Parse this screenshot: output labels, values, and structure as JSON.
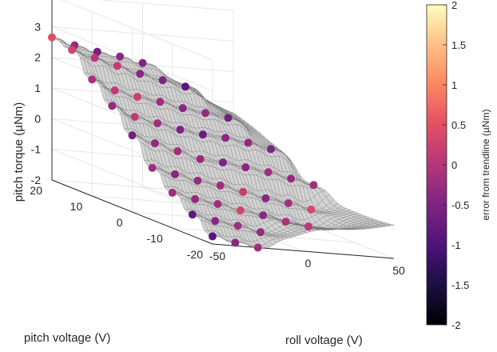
{
  "chart_data": {
    "type": "surface",
    "xlabel": "roll voltage (V)",
    "ylabel": "pitch voltage (V)",
    "zlabel": "pitch torque (µNm)",
    "colorbar_label": "error from trendline (µNm)",
    "xlim": [
      -50,
      50
    ],
    "ylim": [
      -20,
      20
    ],
    "zlim": [
      -2,
      4
    ],
    "clim": [
      -2,
      2
    ],
    "colormap": "magma",
    "x_ticks": [
      "-50",
      "0",
      "50"
    ],
    "y_ticks": [
      "-20",
      "-10",
      "0",
      "10",
      "20"
    ],
    "z_ticks": [
      "-2",
      "-1",
      "0",
      "1",
      "2",
      "3",
      "4"
    ],
    "cb_ticks": [
      "2",
      "1.5",
      "1",
      "0.5",
      "0",
      "-0.5",
      "-1",
      "-1.5",
      "-2"
    ],
    "grid": true,
    "surface_color": "#d2d2d2",
    "mesh_color": "#6e6e6e",
    "roll_voltages": [
      -50,
      -37.5,
      -25,
      -12.5,
      0,
      12.5,
      25,
      37.5,
      50
    ],
    "pitch_voltages": [
      20,
      15,
      10,
      5,
      0,
      -5,
      -10,
      -15,
      -20
    ],
    "points": [
      {
        "x": -50,
        "y": 20,
        "z": 2.65,
        "e": 0.45
      },
      {
        "x": -37.5,
        "y": 20,
        "z": 2.45,
        "e": -0.3
      },
      {
        "x": -25,
        "y": 20,
        "z": 2.3,
        "e": -0.6
      },
      {
        "x": -12.5,
        "y": 20,
        "z": 2.2,
        "e": -0.4
      },
      {
        "x": 0,
        "y": 20,
        "z": 2.05,
        "e": -0.5
      },
      {
        "x": -50,
        "y": 15,
        "z": 2.5,
        "e": 0.3
      },
      {
        "x": -37.5,
        "y": 15,
        "z": 2.3,
        "e": 0.05
      },
      {
        "x": -25,
        "y": 15,
        "z": 2.1,
        "e": 0.15
      },
      {
        "x": -12.5,
        "y": 15,
        "z": 1.9,
        "e": -0.4
      },
      {
        "x": 0,
        "y": 15,
        "z": 1.75,
        "e": -0.5
      },
      {
        "x": 12.5,
        "y": 15,
        "z": 1.6,
        "e": -0.9
      },
      {
        "x": -50,
        "y": 10,
        "z": 1.8,
        "e": -0.1
      },
      {
        "x": -37.5,
        "y": 10,
        "z": 1.5,
        "e": 0.1
      },
      {
        "x": -25,
        "y": 10,
        "z": 1.35,
        "e": 0.2
      },
      {
        "x": -12.5,
        "y": 10,
        "z": 1.25,
        "e": -0.2
      },
      {
        "x": 0,
        "y": 10,
        "z": 1.1,
        "e": -0.4
      },
      {
        "x": 12.5,
        "y": 10,
        "z": 1.0,
        "e": -0.3
      },
      {
        "x": 25,
        "y": 10,
        "z": 0.9,
        "e": -0.6
      },
      {
        "x": -50,
        "y": 5,
        "z": 1.2,
        "e": -0.3
      },
      {
        "x": -37.5,
        "y": 5,
        "z": 0.9,
        "e": 0.1
      },
      {
        "x": -25,
        "y": 5,
        "z": 0.75,
        "e": -0.2
      },
      {
        "x": -12.5,
        "y": 5,
        "z": 0.6,
        "e": -0.5
      },
      {
        "x": 0,
        "y": 5,
        "z": 0.5,
        "e": -0.7
      },
      {
        "x": 12.5,
        "y": 5,
        "z": 0.45,
        "e": -0.4
      },
      {
        "x": 25,
        "y": 5,
        "z": 0.35,
        "e": -0.3
      },
      {
        "x": 37.5,
        "y": 5,
        "z": 0.2,
        "e": -0.5
      },
      {
        "x": -50,
        "y": 0,
        "z": 0.5,
        "e": -0.6
      },
      {
        "x": -37.5,
        "y": 0,
        "z": 0.3,
        "e": -0.3
      },
      {
        "x": -25,
        "y": 0,
        "z": 0.1,
        "e": -0.2
      },
      {
        "x": -12.5,
        "y": 0,
        "z": -0.1,
        "e": -0.3
      },
      {
        "x": 0,
        "y": 0,
        "z": -0.15,
        "e": -0.5
      },
      {
        "x": 12.5,
        "y": 0,
        "z": -0.25,
        "e": -0.4
      },
      {
        "x": 25,
        "y": 0,
        "z": -0.35,
        "e": -0.2
      },
      {
        "x": 37.5,
        "y": 0,
        "z": -0.5,
        "e": -0.3
      },
      {
        "x": 50,
        "y": 0,
        "z": -0.65,
        "e": -0.2
      },
      {
        "x": -50,
        "y": -5,
        "z": -0.3,
        "e": -0.2
      },
      {
        "x": -37.5,
        "y": -5,
        "z": -0.45,
        "e": -0.4
      },
      {
        "x": -25,
        "y": -5,
        "z": -0.6,
        "e": -0.3
      },
      {
        "x": -12.5,
        "y": -5,
        "z": -0.7,
        "e": -0.2
      },
      {
        "x": 0,
        "y": -5,
        "z": -0.85,
        "e": 0.15
      },
      {
        "x": 12.5,
        "y": -5,
        "z": -1.0,
        "e": -0.4
      },
      {
        "x": 25,
        "y": -5,
        "z": -1.1,
        "e": -0.2
      },
      {
        "x": 37.5,
        "y": -5,
        "z": -1.25,
        "e": 0.35
      },
      {
        "x": -50,
        "y": -10,
        "z": -0.85,
        "e": -0.2
      },
      {
        "x": -37.5,
        "y": -10,
        "z": -1.0,
        "e": -0.3
      },
      {
        "x": -25,
        "y": -10,
        "z": -1.1,
        "e": -0.2
      },
      {
        "x": -12.5,
        "y": -10,
        "z": -1.25,
        "e": 0.3
      },
      {
        "x": 0,
        "y": -10,
        "z": -1.35,
        "e": -0.4
      },
      {
        "x": 12.5,
        "y": -10,
        "z": -1.5,
        "e": -0.1
      },
      {
        "x": 25,
        "y": -10,
        "z": -1.6,
        "e": 0.05
      },
      {
        "x": -50,
        "y": -15,
        "z": -1.3,
        "e": -0.8
      },
      {
        "x": -37.5,
        "y": -15,
        "z": -1.45,
        "e": -0.4
      },
      {
        "x": -25,
        "y": -15,
        "z": -1.55,
        "e": -0.2
      },
      {
        "x": -12.5,
        "y": -15,
        "z": -1.7,
        "e": -0.3
      },
      {
        "x": -50,
        "y": -20,
        "z": -1.75,
        "e": -0.9
      },
      {
        "x": -37.5,
        "y": -20,
        "z": -1.9,
        "e": -0.4
      },
      {
        "x": -25,
        "y": -20,
        "z": -2.0,
        "e": -0.2
      }
    ]
  }
}
